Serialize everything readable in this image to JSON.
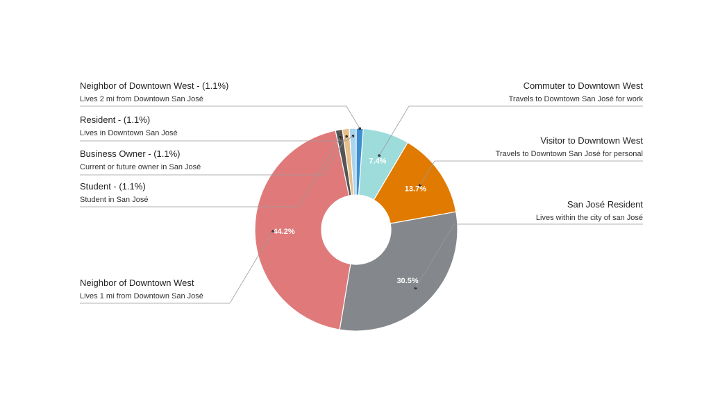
{
  "chart_data": {
    "type": "pie",
    "style": "donut",
    "slices": [
      {
        "key": "commuter",
        "title": "Commuter to Downtown West",
        "subtitle": "Travels to Downtown San José for work",
        "value": 7.4,
        "pct_label": "7.4%",
        "color": "#9edcdc",
        "side": "right"
      },
      {
        "key": "visitor",
        "title": "Visitor to Downtown West",
        "subtitle": "Travels to Downtown San José for personal",
        "value": 13.7,
        "pct_label": "13.7%",
        "color": "#e07a00",
        "side": "right"
      },
      {
        "key": "sj_resident",
        "title": "San José Resident",
        "subtitle": "Lives within the city of san José",
        "value": 30.5,
        "pct_label": "30.5%",
        "color": "#84878b",
        "side": "right"
      },
      {
        "key": "neighbor",
        "title": "Neighbor of Downtown West",
        "subtitle": "Lives 1 mi from Downtown San José",
        "value": 44.2,
        "pct_label": "44.2%",
        "color": "#e07a7a",
        "side": "left"
      },
      {
        "key": "student",
        "title": "Student - (1.1%)",
        "subtitle": "Student in San José",
        "value": 1.1,
        "pct_label": "",
        "color": "#555555",
        "side": "left"
      },
      {
        "key": "business_owner",
        "title": "Business Owner - (1.1%)",
        "subtitle": "Current or future owner in San José",
        "value": 1.1,
        "pct_label": "",
        "color": "#e8c08a",
        "side": "left"
      },
      {
        "key": "resident",
        "title": "Resident - (1.1%)",
        "subtitle": "Lives in Downtown San José",
        "value": 1.1,
        "pct_label": "",
        "color": "#a9d3ee",
        "side": "left"
      },
      {
        "key": "neighbor_2mi",
        "title": "Neighbor of Downtown West - (1.1%)",
        "subtitle": "Lives 2 mi from Downtown San José",
        "value": 1.1,
        "pct_label": "",
        "color": "#3d8fd1",
        "side": "left"
      }
    ]
  }
}
